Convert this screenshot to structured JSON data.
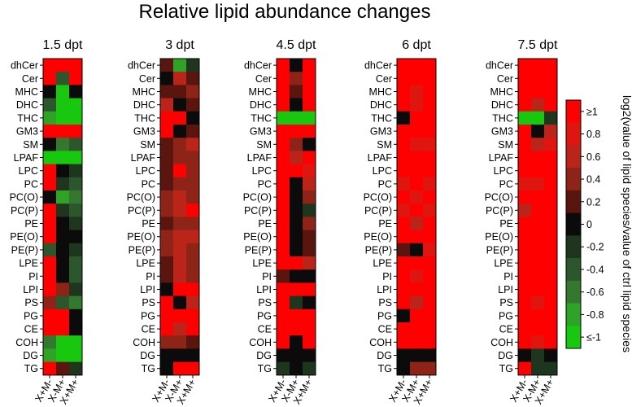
{
  "chart_data": {
    "type": "heatmap",
    "title": "Relative lipid abundance changes",
    "rows": [
      "dhCer",
      "Cer",
      "MHC",
      "DHC",
      "THC",
      "GM3",
      "SM",
      "LPAF",
      "LPC",
      "PC",
      "PC(O)",
      "PC(P)",
      "PE",
      "PE(O)",
      "PE(P)",
      "LPE",
      "PI",
      "LPI",
      "PS",
      "PG",
      "CE",
      "COH",
      "DG",
      "TG"
    ],
    "columns": [
      "X+M-",
      "X-M+",
      "X+M+"
    ],
    "panels": [
      {
        "title": "1.5 dpt",
        "values": [
          [
            1,
            1,
            1
          ],
          [
            1,
            -0.4,
            1
          ],
          [
            0,
            -1,
            0
          ],
          [
            -0.4,
            -1,
            -1
          ],
          [
            -0.8,
            -1,
            -1
          ],
          [
            1,
            1,
            1
          ],
          [
            0,
            -0.6,
            -0.4
          ],
          [
            -1,
            -1,
            -1
          ],
          [
            1,
            0,
            -0.2
          ],
          [
            1,
            -0.2,
            -0.4
          ],
          [
            0,
            -0.8,
            -0.6
          ],
          [
            1,
            -0.2,
            -0.4
          ],
          [
            1,
            0,
            -0.2
          ],
          [
            1,
            0,
            0
          ],
          [
            -0.4,
            0,
            -0.2
          ],
          [
            1,
            0,
            -0.4
          ],
          [
            1,
            0,
            -0.4
          ],
          [
            1,
            0.4,
            -0.2
          ],
          [
            0.4,
            -0.4,
            -0.6
          ],
          [
            1,
            1,
            0
          ],
          [
            1,
            1,
            0
          ],
          [
            -0.6,
            -1,
            -1
          ],
          [
            -0.8,
            -1,
            -1
          ],
          [
            1,
            0.2,
            -0.2
          ]
        ]
      },
      {
        "title": "3 dpt",
        "values": [
          [
            0.2,
            -0.8,
            -0.2
          ],
          [
            0,
            0.6,
            0.2
          ],
          [
            0.2,
            0.2,
            0.4
          ],
          [
            0.6,
            0,
            0.2
          ],
          [
            1,
            1,
            0
          ],
          [
            1,
            0,
            0.2
          ],
          [
            0.2,
            0.4,
            0.6
          ],
          [
            0.2,
            0.4,
            0.4
          ],
          [
            0.2,
            1,
            0.4
          ],
          [
            0.2,
            0.4,
            0.4
          ],
          [
            0.4,
            0.6,
            0.4
          ],
          [
            0.4,
            0.6,
            1
          ],
          [
            0.2,
            0.4,
            0.4
          ],
          [
            0.4,
            0.6,
            0.6
          ],
          [
            0.4,
            0.6,
            0.4
          ],
          [
            0.2,
            0.6,
            0.4
          ],
          [
            0.2,
            0.6,
            0.4
          ],
          [
            0,
            1,
            1
          ],
          [
            1,
            0,
            0.6
          ],
          [
            1,
            1,
            1
          ],
          [
            1,
            0.6,
            1
          ],
          [
            0.4,
            0.4,
            0.2
          ],
          [
            0,
            0,
            0
          ],
          [
            0,
            1,
            1
          ]
        ]
      },
      {
        "title": "4.5 dpt",
        "values": [
          [
            1,
            0,
            1
          ],
          [
            1,
            0.4,
            1
          ],
          [
            1,
            0.2,
            1
          ],
          [
            1,
            0,
            1
          ],
          [
            -1,
            -1,
            -1
          ],
          [
            1,
            1,
            1
          ],
          [
            1,
            0.4,
            0
          ],
          [
            1,
            0.6,
            1
          ],
          [
            1,
            1,
            0.8
          ],
          [
            1,
            0,
            0.6
          ],
          [
            1,
            0,
            0.4
          ],
          [
            1,
            0,
            -0.2
          ],
          [
            1,
            0,
            0.4
          ],
          [
            1,
            0,
            0.2
          ],
          [
            1,
            0,
            0.2
          ],
          [
            1,
            1,
            0.6
          ],
          [
            0.2,
            0,
            0
          ],
          [
            1,
            1,
            1
          ],
          [
            1,
            -0.2,
            0
          ],
          [
            1,
            1,
            1
          ],
          [
            1,
            1,
            1
          ],
          [
            1,
            0,
            1
          ],
          [
            0,
            0,
            0
          ],
          [
            -0.2,
            0,
            -0.2
          ]
        ]
      },
      {
        "title": "6 dpt",
        "values": [
          [
            1,
            1,
            1
          ],
          [
            1,
            1,
            1
          ],
          [
            1,
            0.8,
            1
          ],
          [
            1,
            0.8,
            1
          ],
          [
            0,
            1,
            1
          ],
          [
            1,
            1,
            1
          ],
          [
            1,
            0.8,
            0.8
          ],
          [
            1,
            1,
            1
          ],
          [
            1,
            1,
            1
          ],
          [
            0.8,
            1,
            0.8
          ],
          [
            1,
            0.8,
            1
          ],
          [
            0.8,
            1,
            0.8
          ],
          [
            1,
            0.6,
            1
          ],
          [
            1,
            1,
            1
          ],
          [
            0.2,
            0,
            0.8
          ],
          [
            1,
            1,
            1
          ],
          [
            1,
            0.8,
            1
          ],
          [
            1,
            1,
            1
          ],
          [
            1,
            0.6,
            1
          ],
          [
            0,
            1,
            1
          ],
          [
            1,
            1,
            1
          ],
          [
            1,
            1,
            1
          ],
          [
            0,
            0,
            0
          ],
          [
            0,
            0.4,
            0.4
          ]
        ]
      },
      {
        "title": "7.5 dpt",
        "values": [
          [
            1,
            1,
            1
          ],
          [
            1,
            1,
            1
          ],
          [
            1,
            1,
            1
          ],
          [
            1,
            0.6,
            1
          ],
          [
            -1,
            -1,
            -0.2
          ],
          [
            1,
            0,
            0.6
          ],
          [
            1,
            0.6,
            0.8
          ],
          [
            1,
            1,
            1
          ],
          [
            1,
            1,
            1
          ],
          [
            0.8,
            0.8,
            1
          ],
          [
            1,
            1,
            1
          ],
          [
            0.6,
            1,
            1
          ],
          [
            1,
            1,
            1
          ],
          [
            1,
            1,
            1
          ],
          [
            1,
            1,
            1
          ],
          [
            1,
            1,
            1
          ],
          [
            1,
            1,
            1
          ],
          [
            1,
            1,
            1
          ],
          [
            1,
            0.8,
            1
          ],
          [
            1,
            1,
            1
          ],
          [
            1,
            1,
            1
          ],
          [
            1,
            0.8,
            1
          ],
          [
            0,
            -0.2,
            0
          ],
          [
            1,
            -0.2,
            -0.2
          ]
        ]
      }
    ],
    "colorbar": {
      "label": "log2(value of lipid species/value of ctrl lipid species",
      "range": [
        -1,
        1
      ],
      "ticks": [
        "≥1",
        "0.8",
        "0.6",
        "0.4",
        "0.2",
        "0",
        "-0.2",
        "-0.4",
        "-0.6",
        "-0.8",
        "≤-1"
      ],
      "colors": [
        "#ff0000",
        "#df1510",
        "#bb2418",
        "#8e2318",
        "#5a160e",
        "#0b0b0b",
        "#1d361d",
        "#2c562c",
        "#34782f",
        "#2fa326",
        "#18c80e"
      ]
    }
  }
}
